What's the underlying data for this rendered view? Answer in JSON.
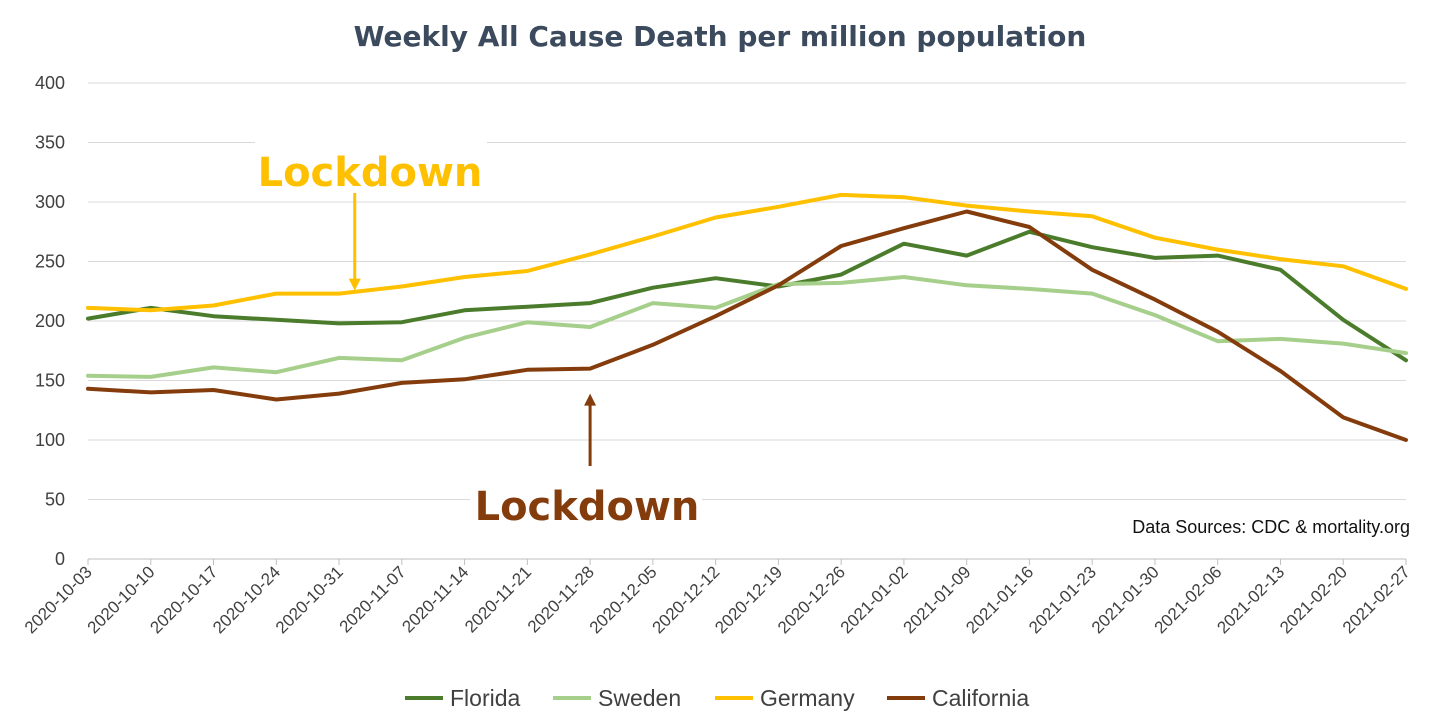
{
  "chart_data": {
    "type": "line",
    "title": "Weekly All Cause Death per million population",
    "xlabel": "",
    "ylabel": "",
    "ylim": [
      0,
      400
    ],
    "yticks": [
      0,
      50,
      100,
      150,
      200,
      250,
      300,
      350,
      400
    ],
    "grid": true,
    "legend_position": "bottom",
    "categories": [
      "2020-10-03",
      "2020-10-10",
      "2020-10-17",
      "2020-10-24",
      "2020-10-31",
      "2020-11-07",
      "2020-11-14",
      "2020-11-21",
      "2020-11-28",
      "2020-12-05",
      "2020-12-12",
      "2020-12-19",
      "2020-12-26",
      "2021-01-02",
      "2021-01-09",
      "2021-01-16",
      "2021-01-23",
      "2021-01-30",
      "2021-02-06",
      "2021-02-13",
      "2021-02-20",
      "2021-02-27"
    ],
    "series": [
      {
        "name": "Florida",
        "color": "#4a7c2c",
        "values": [
          202,
          211,
          204,
          201,
          198,
          199,
          209,
          212,
          215,
          228,
          236,
          229,
          239,
          265,
          255,
          275,
          262,
          253,
          255,
          243,
          201,
          167
        ]
      },
      {
        "name": "Sweden",
        "color": "#a5cf8b",
        "values": [
          154,
          153,
          161,
          157,
          169,
          167,
          186,
          199,
          195,
          215,
          211,
          231,
          232,
          237,
          230,
          227,
          223,
          205,
          183,
          185,
          181,
          173
        ]
      },
      {
        "name": "Germany",
        "color": "#ffc000",
        "values": [
          211,
          209,
          213,
          223,
          223,
          229,
          237,
          242,
          256,
          271,
          287,
          296,
          306,
          304,
          297,
          292,
          288,
          270,
          260,
          252,
          246,
          227
        ]
      },
      {
        "name": "California",
        "color": "#843c0c",
        "values": [
          143,
          140,
          142,
          134,
          139,
          148,
          151,
          159,
          160,
          180,
          204,
          230,
          263,
          278,
          292,
          279,
          243,
          218,
          191,
          158,
          119,
          100
        ]
      }
    ],
    "annotations": [
      {
        "text": "Lockdown",
        "color": "#ffc000",
        "points_to": {
          "x": 4.25,
          "y": 223
        }
      },
      {
        "text": "Lockdown",
        "color": "#843c0c",
        "points_to": {
          "x": 8,
          "y": 160
        }
      }
    ],
    "source_note": "Data Sources: CDC & mortality.org"
  }
}
